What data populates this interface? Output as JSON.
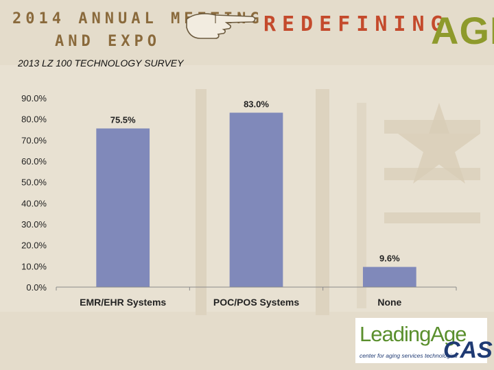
{
  "header": {
    "event_line1": "2014 ANNUAL MEETING",
    "event_line2": "AND EXPO",
    "theme_word": "REDEFINING",
    "theme_age": "AGE"
  },
  "subtitle": "2013 LZ 100 TECHNOLOGY SURVEY",
  "logo": {
    "name": "LeadingAge",
    "tagline": "center for aging services technologies",
    "cast": "CAST"
  },
  "colors": {
    "bar": "#8089ba",
    "background": "#e4dccb",
    "event_text": "#8a6a3c",
    "theme_red": "#c44a2c",
    "theme_green": "#8e9a2c"
  },
  "chart_data": {
    "type": "bar",
    "categories": [
      "EMR/EHR Systems",
      "POC/POS Systems",
      "None"
    ],
    "values": [
      75.5,
      83.0,
      9.6
    ],
    "value_labels": [
      "75.5%",
      "83.0%",
      "9.6%"
    ],
    "yticks": [
      "0.0%",
      "10.0%",
      "20.0%",
      "30.0%",
      "40.0%",
      "50.0%",
      "60.0%",
      "70.0%",
      "80.0%",
      "90.0%"
    ],
    "ylim": [
      0,
      90
    ],
    "grid": false,
    "legend": "none",
    "title": "",
    "xlabel": "",
    "ylabel": ""
  }
}
